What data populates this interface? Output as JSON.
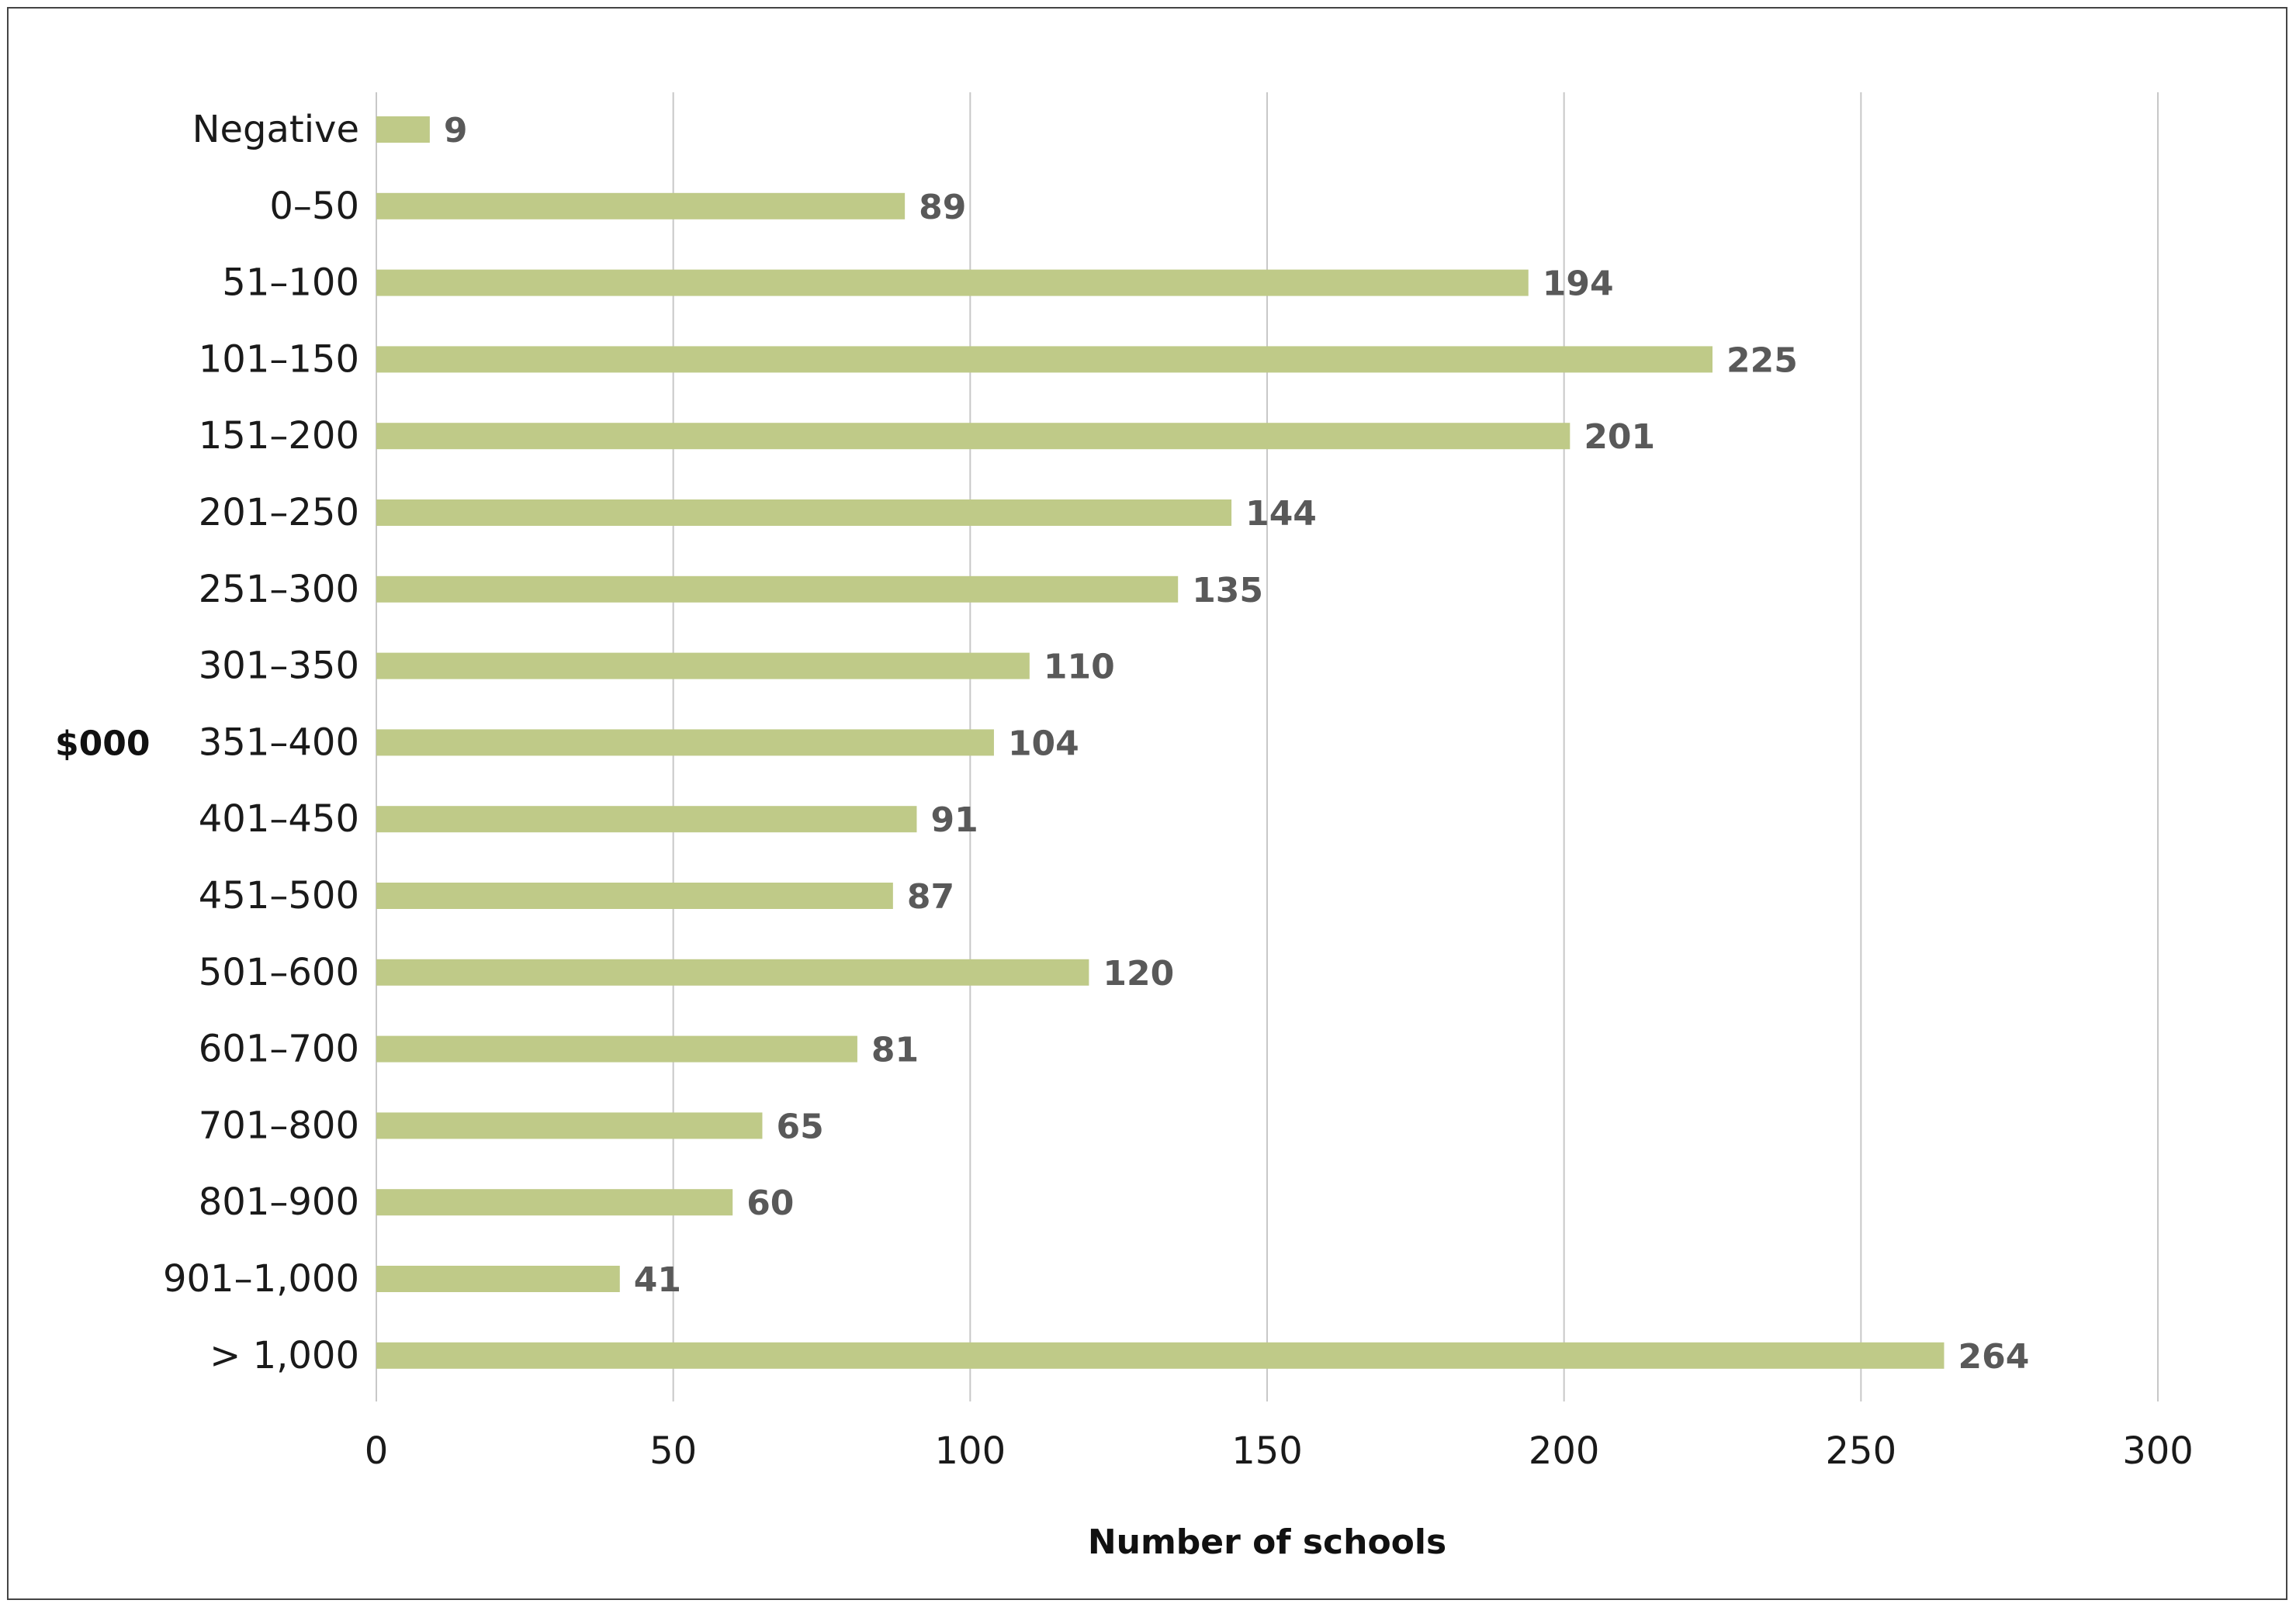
{
  "colors": {
    "bar": "#bfca88",
    "grid": "#c8c8c8",
    "data_label": "#595959"
  },
  "chart_data": {
    "type": "bar",
    "orientation": "horizontal",
    "categories": [
      "Negative",
      "0–50",
      "51–100",
      "101–150",
      "151–200",
      "201–250",
      "251–300",
      "301–350",
      "351–400",
      "401–450",
      "451–500",
      "501–600",
      "601–700",
      "701–800",
      "801–900",
      "901–1,000",
      "> 1,000"
    ],
    "values": [
      9,
      89,
      194,
      225,
      201,
      144,
      135,
      110,
      104,
      91,
      87,
      120,
      81,
      65,
      60,
      41,
      264
    ],
    "xlabel": "Number of schools",
    "ylabel": "$000",
    "xlim": [
      0,
      300
    ],
    "xticks": [
      0,
      50,
      100,
      150,
      200,
      250,
      300
    ],
    "grid": "vertical",
    "data_labels": true,
    "legend": "none"
  }
}
